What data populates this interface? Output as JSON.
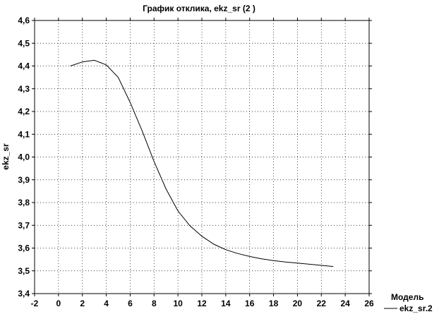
{
  "chart_data": {
    "type": "line",
    "title": "График отклика, ekz_sr (2 )",
    "xlabel": "",
    "ylabel": "ekz_sr",
    "xlim": [
      -2,
      26
    ],
    "ylim": [
      3.4,
      4.6
    ],
    "xticks": [
      -2,
      0,
      2,
      4,
      6,
      8,
      10,
      12,
      14,
      16,
      18,
      20,
      22,
      24,
      26
    ],
    "yticks": [
      3.4,
      3.5,
      3.6,
      3.7,
      3.8,
      3.9,
      4.0,
      4.1,
      4.2,
      4.3,
      4.4,
      4.5,
      4.6
    ],
    "decimal_separator": ",",
    "y_tick_decimals": 1,
    "grid": true,
    "legend": {
      "title": "Модель",
      "placement": "bottom-right"
    },
    "series": [
      {
        "name": "ekz_sr.2",
        "x": [
          1,
          2,
          3,
          4,
          5,
          6,
          7,
          8,
          9,
          10,
          11,
          12,
          13,
          14,
          15,
          16,
          17,
          18,
          19,
          20,
          21,
          22,
          23
        ],
        "values": [
          4.4,
          4.418,
          4.425,
          4.405,
          4.35,
          4.24,
          4.115,
          3.98,
          3.86,
          3.763,
          3.698,
          3.652,
          3.617,
          3.593,
          3.576,
          3.563,
          3.553,
          3.545,
          3.539,
          3.534,
          3.529,
          3.524,
          3.519
        ]
      }
    ]
  }
}
